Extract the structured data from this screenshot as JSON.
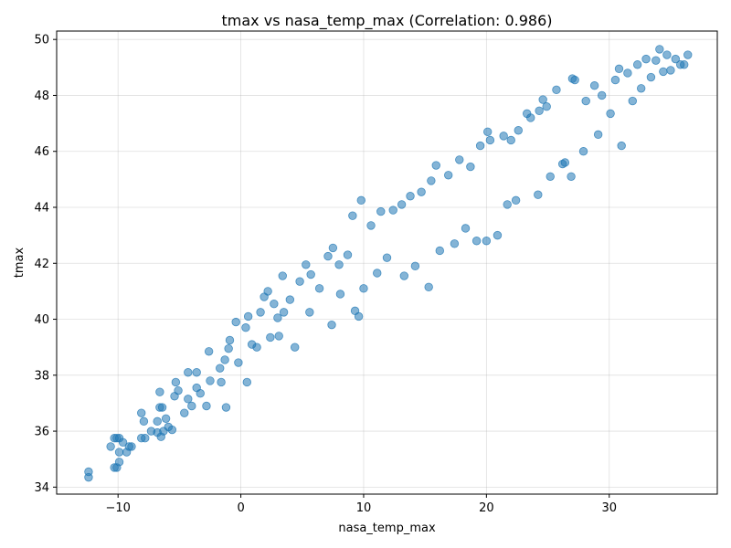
{
  "chart_data": {
    "type": "scatter",
    "title": "tmax vs nasa_temp_max (Correlation: 0.986)",
    "xlabel": "nasa_temp_max",
    "ylabel": "tmax",
    "xlim": [
      -15.0,
      38.8
    ],
    "ylim": [
      33.75,
      50.3
    ],
    "x_ticks": [
      -10,
      0,
      10,
      20,
      30
    ],
    "x_tick_labels": [
      "−10",
      "0",
      "10",
      "20",
      "30"
    ],
    "y_ticks": [
      34,
      36,
      38,
      40,
      42,
      44,
      46,
      48,
      50
    ],
    "y_tick_labels": [
      "34",
      "36",
      "38",
      "40",
      "42",
      "44",
      "46",
      "48",
      "50"
    ],
    "grid": true,
    "marker_color": "#1f77b4",
    "marker_alpha": 0.55,
    "points": [
      [
        -12.4,
        34.35
      ],
      [
        -12.4,
        34.55
      ],
      [
        -10.6,
        35.45
      ],
      [
        -10.3,
        35.75
      ],
      [
        -10.1,
        35.75
      ],
      [
        -9.9,
        35.75
      ],
      [
        -10.3,
        34.7
      ],
      [
        -10.1,
        34.7
      ],
      [
        -9.9,
        34.9
      ],
      [
        -9.6,
        35.6
      ],
      [
        -9.3,
        35.25
      ],
      [
        -9.1,
        35.45
      ],
      [
        -8.9,
        35.45
      ],
      [
        -9.9,
        35.25
      ],
      [
        -8.1,
        35.75
      ],
      [
        -7.8,
        35.75
      ],
      [
        -8.1,
        36.65
      ],
      [
        -7.9,
        36.35
      ],
      [
        -7.3,
        36.0
      ],
      [
        -6.8,
        36.35
      ],
      [
        -6.6,
        36.85
      ],
      [
        -6.4,
        36.85
      ],
      [
        -6.6,
        37.4
      ],
      [
        -6.5,
        35.8
      ],
      [
        -6.8,
        35.95
      ],
      [
        -6.3,
        36.0
      ],
      [
        -6.1,
        36.45
      ],
      [
        -5.9,
        36.15
      ],
      [
        -5.6,
        36.05
      ],
      [
        -5.4,
        37.25
      ],
      [
        -5.3,
        37.75
      ],
      [
        -5.1,
        37.45
      ],
      [
        -4.6,
        36.65
      ],
      [
        -4.3,
        37.15
      ],
      [
        -4.0,
        36.9
      ],
      [
        -4.3,
        38.1
      ],
      [
        -3.6,
        37.55
      ],
      [
        -3.6,
        38.1
      ],
      [
        -3.3,
        37.35
      ],
      [
        -2.8,
        36.9
      ],
      [
        -2.5,
        37.8
      ],
      [
        -2.6,
        38.85
      ],
      [
        -1.7,
        38.25
      ],
      [
        -1.6,
        37.75
      ],
      [
        -1.3,
        38.55
      ],
      [
        -1.2,
        36.85
      ],
      [
        -1.0,
        38.95
      ],
      [
        -0.9,
        39.25
      ],
      [
        -0.4,
        39.9
      ],
      [
        -0.2,
        38.45
      ],
      [
        0.4,
        39.7
      ],
      [
        0.5,
        37.75
      ],
      [
        0.6,
        40.1
      ],
      [
        0.9,
        39.1
      ],
      [
        1.3,
        39.0
      ],
      [
        1.6,
        40.25
      ],
      [
        1.9,
        40.8
      ],
      [
        2.2,
        41.0
      ],
      [
        2.4,
        39.35
      ],
      [
        2.7,
        40.55
      ],
      [
        3.0,
        40.05
      ],
      [
        3.1,
        39.4
      ],
      [
        3.4,
        41.55
      ],
      [
        3.5,
        40.25
      ],
      [
        4.0,
        40.7
      ],
      [
        4.4,
        39.0
      ],
      [
        4.8,
        41.35
      ],
      [
        5.3,
        41.95
      ],
      [
        5.6,
        40.25
      ],
      [
        5.7,
        41.6
      ],
      [
        6.4,
        41.1
      ],
      [
        7.1,
        42.25
      ],
      [
        7.4,
        39.8
      ],
      [
        7.5,
        42.55
      ],
      [
        8.0,
        41.95
      ],
      [
        8.1,
        40.9
      ],
      [
        8.7,
        42.3
      ],
      [
        9.1,
        43.7
      ],
      [
        9.3,
        40.3
      ],
      [
        9.6,
        40.1
      ],
      [
        9.8,
        44.25
      ],
      [
        10.0,
        41.1
      ],
      [
        10.6,
        43.35
      ],
      [
        11.1,
        41.65
      ],
      [
        11.4,
        43.85
      ],
      [
        11.9,
        42.2
      ],
      [
        12.4,
        43.9
      ],
      [
        13.1,
        44.1
      ],
      [
        13.3,
        41.55
      ],
      [
        13.8,
        44.4
      ],
      [
        14.2,
        41.9
      ],
      [
        14.7,
        44.55
      ],
      [
        15.3,
        41.15
      ],
      [
        15.5,
        44.95
      ],
      [
        15.9,
        45.5
      ],
      [
        16.2,
        42.45
      ],
      [
        16.9,
        45.15
      ],
      [
        17.4,
        42.7
      ],
      [
        17.8,
        45.7
      ],
      [
        18.3,
        43.25
      ],
      [
        18.7,
        45.45
      ],
      [
        19.2,
        42.8
      ],
      [
        19.5,
        46.2
      ],
      [
        20.0,
        42.8
      ],
      [
        20.1,
        46.7
      ],
      [
        20.3,
        46.4
      ],
      [
        20.9,
        43.0
      ],
      [
        21.4,
        46.55
      ],
      [
        21.7,
        44.1
      ],
      [
        22.0,
        46.4
      ],
      [
        22.4,
        44.25
      ],
      [
        22.6,
        46.75
      ],
      [
        23.3,
        47.35
      ],
      [
        23.6,
        47.2
      ],
      [
        24.2,
        44.45
      ],
      [
        24.3,
        47.45
      ],
      [
        24.6,
        47.85
      ],
      [
        24.9,
        47.6
      ],
      [
        25.2,
        45.1
      ],
      [
        25.7,
        48.2
      ],
      [
        26.2,
        45.55
      ],
      [
        26.4,
        45.6
      ],
      [
        26.9,
        45.1
      ],
      [
        27.0,
        48.6
      ],
      [
        27.2,
        48.55
      ],
      [
        27.9,
        46.0
      ],
      [
        28.1,
        47.8
      ],
      [
        28.8,
        48.35
      ],
      [
        29.1,
        46.6
      ],
      [
        29.4,
        48.0
      ],
      [
        30.1,
        47.35
      ],
      [
        30.5,
        48.55
      ],
      [
        30.8,
        48.95
      ],
      [
        31.0,
        46.2
      ],
      [
        31.5,
        48.8
      ],
      [
        31.9,
        47.8
      ],
      [
        32.3,
        49.1
      ],
      [
        32.6,
        48.25
      ],
      [
        33.0,
        49.3
      ],
      [
        33.4,
        48.65
      ],
      [
        33.8,
        49.25
      ],
      [
        34.1,
        49.65
      ],
      [
        34.4,
        48.85
      ],
      [
        34.7,
        49.45
      ],
      [
        35.0,
        48.9
      ],
      [
        35.4,
        49.3
      ],
      [
        35.8,
        49.1
      ],
      [
        36.1,
        49.1
      ],
      [
        36.4,
        49.45
      ]
    ]
  }
}
